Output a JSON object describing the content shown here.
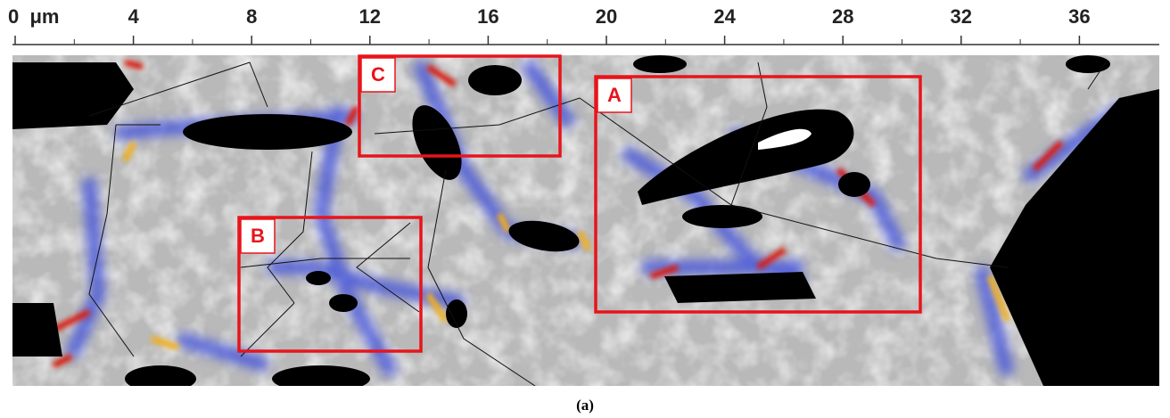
{
  "ruler": {
    "xlim": [
      0,
      39.6
    ],
    "ticks": [
      {
        "value": 0,
        "label": "0  μm"
      },
      4,
      8,
      12,
      16,
      20,
      24,
      28,
      32,
      36
    ]
  },
  "regions": [
    {
      "label": "A"
    },
    {
      "label": "B"
    },
    {
      "label": "C"
    }
  ],
  "caption": "(a)"
}
